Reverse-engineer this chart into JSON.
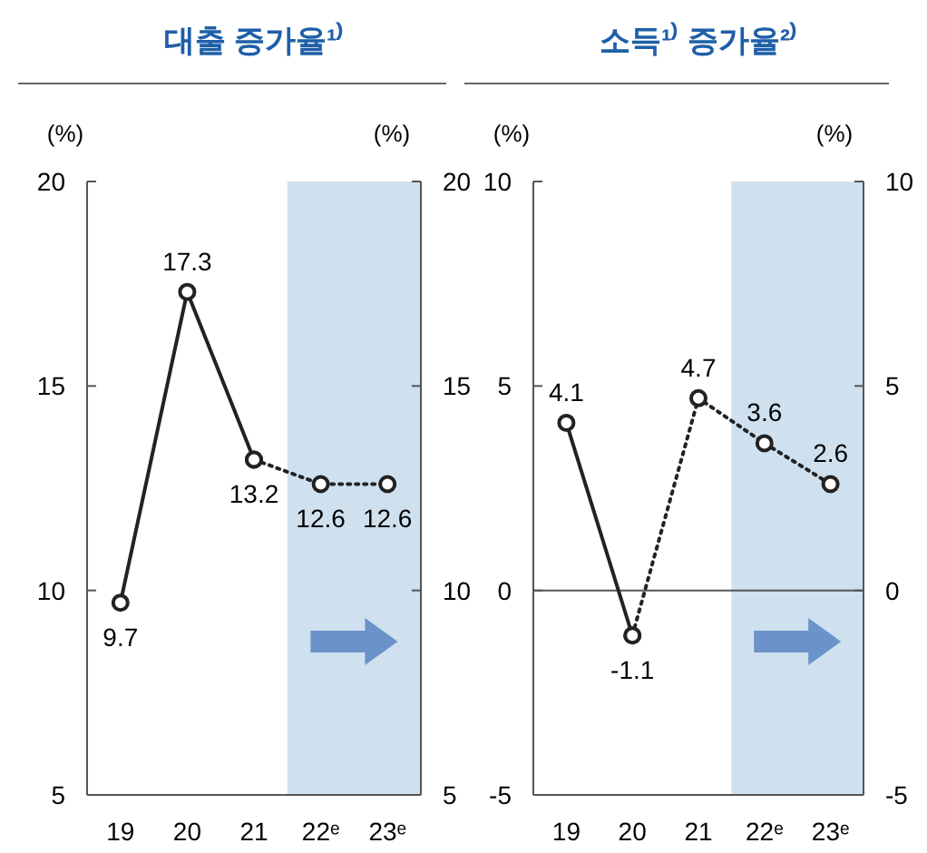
{
  "chart_data": [
    {
      "type": "line",
      "title": "대출 증가율¹⁾",
      "ylabel": "(%)",
      "y2label": "(%)",
      "categories": [
        "19",
        "20",
        "21",
        "22ᵉ",
        "23ᵉ"
      ],
      "ylim": [
        5,
        20
      ],
      "yticks": [
        5,
        10,
        15,
        20
      ],
      "y2lim": [
        5,
        20
      ],
      "y2ticks": [
        5,
        10,
        15,
        20
      ],
      "marker": "circle",
      "grid": false,
      "series": [
        {
          "color": "#222222",
          "line_style": "solid",
          "values": [
            9.7,
            17.3,
            13.2,
            null,
            null
          ],
          "value_labels": [
            "9.7",
            "17.3",
            "13.2",
            null,
            null
          ]
        },
        {
          "color": "#222222",
          "line_style": "dotted",
          "values": [
            null,
            null,
            13.2,
            12.6,
            12.6
          ],
          "value_labels": [
            null,
            null,
            null,
            "12.6",
            "12.6"
          ]
        }
      ],
      "bands": [
        {
          "axis": "x",
          "from": "22ᵉ",
          "to": "23ᵉ",
          "color": "#cfe0ef"
        }
      ]
    },
    {
      "type": "line",
      "title": "소득¹⁾ 증가율²⁾",
      "ylabel": "(%)",
      "y2label": "(%)",
      "categories": [
        "19",
        "20",
        "21",
        "22ᵉ",
        "23ᵉ"
      ],
      "ylim": [
        -5,
        10
      ],
      "yticks": [
        -5,
        0,
        5,
        10
      ],
      "y2lim": [
        -5,
        10
      ],
      "y2ticks": [
        -5,
        0,
        5,
        10
      ],
      "marker": "circle",
      "grid": false,
      "series": [
        {
          "color": "#222222",
          "line_style": "solid",
          "values": [
            4.1,
            -1.1,
            null,
            null,
            null
          ],
          "value_labels": [
            "4.1",
            "-1.1",
            null,
            null,
            null
          ]
        },
        {
          "color": "#222222",
          "line_style": "dotted",
          "values": [
            null,
            -1.1,
            4.7,
            3.6,
            2.6
          ],
          "value_labels": [
            null,
            null,
            "4.7",
            "3.6",
            "2.6"
          ]
        }
      ],
      "ref_lines": [
        {
          "axis": "y",
          "value": 0,
          "color": "#555555"
        }
      ],
      "bands": [
        {
          "axis": "x",
          "from": "22ᵉ",
          "to": "23ᵉ",
          "color": "#cfe0ef"
        }
      ]
    }
  ]
}
